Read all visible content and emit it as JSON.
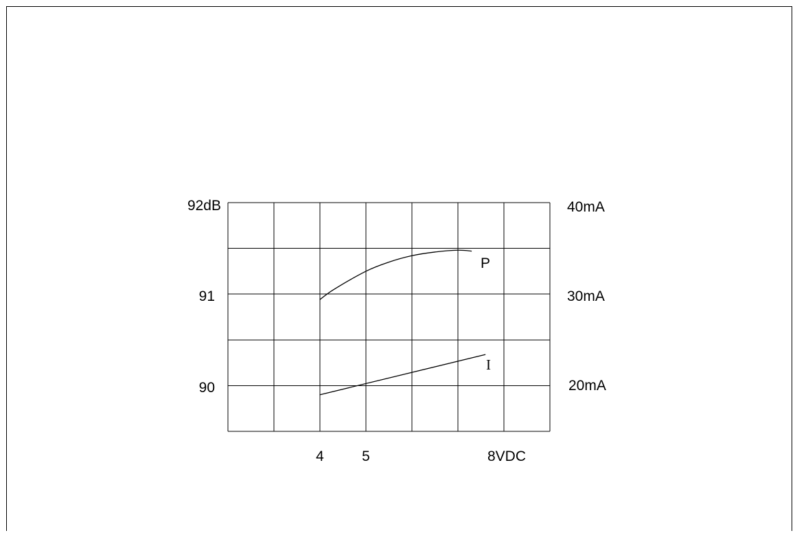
{
  "chart_data": {
    "type": "line",
    "x_range": [
      2,
      9
    ],
    "x_ticks": [
      {
        "x": 4,
        "label": "4"
      },
      {
        "x": 5,
        "label": "5"
      },
      {
        "x": 8,
        "label": "8VDC"
      }
    ],
    "left_axis": {
      "range": [
        89.5,
        92
      ],
      "ticks": [
        {
          "value": 92,
          "label": "92dB"
        },
        {
          "value": 91,
          "label": "91"
        },
        {
          "value": 90,
          "label": "90"
        }
      ]
    },
    "right_axis": {
      "range": [
        15,
        40
      ],
      "ticks": [
        {
          "value": 40,
          "label": "40mA"
        },
        {
          "value": 30,
          "label": "30mA"
        },
        {
          "value": 20,
          "label": "20mA"
        }
      ]
    },
    "grid": true,
    "series": [
      {
        "name": "P",
        "axis": "left",
        "points": [
          [
            4.0,
            90.94
          ],
          [
            4.3,
            91.05
          ],
          [
            5.0,
            91.25
          ],
          [
            5.5,
            91.35
          ],
          [
            6.0,
            91.42
          ],
          [
            6.5,
            91.46
          ],
          [
            7.0,
            91.48
          ],
          [
            7.3,
            91.47
          ]
        ]
      },
      {
        "name": "I",
        "axis": "right",
        "points": [
          [
            4.0,
            19.0
          ],
          [
            7.6,
            23.4
          ]
        ]
      }
    ]
  }
}
